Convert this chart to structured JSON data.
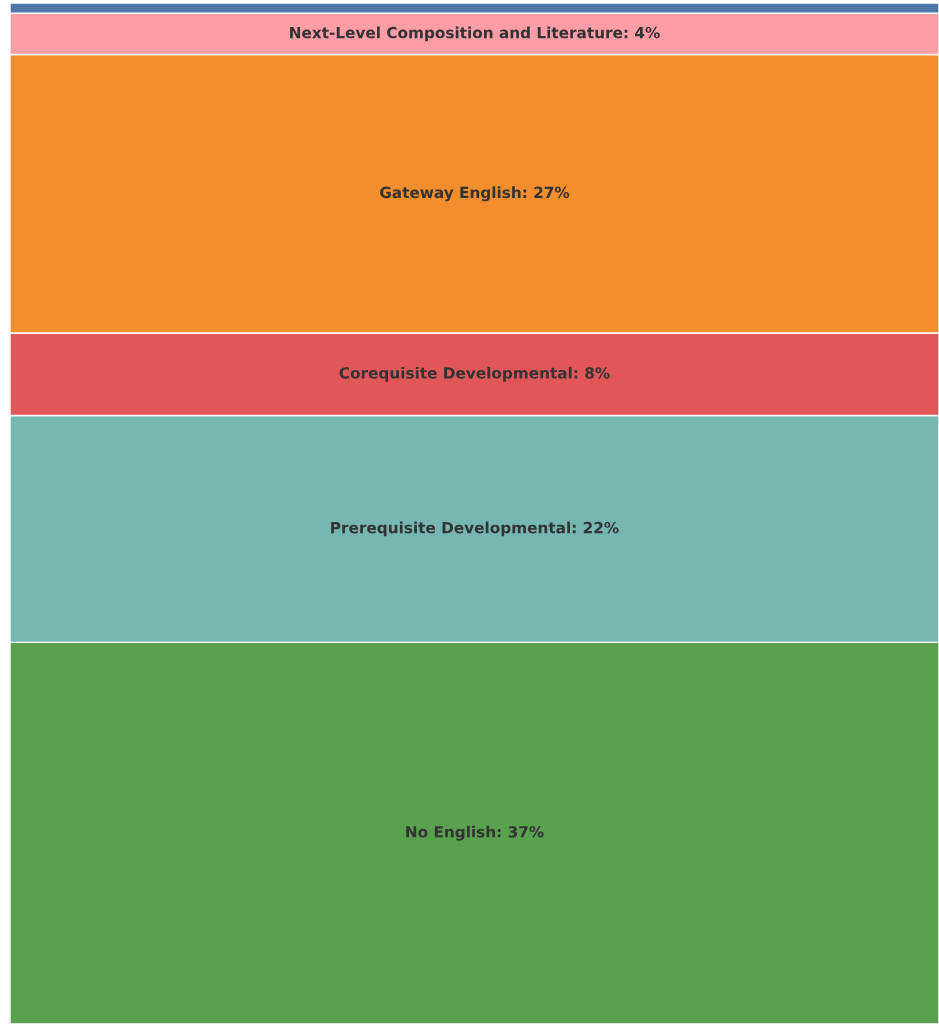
{
  "chart_data": {
    "type": "bar",
    "stacked": true,
    "categories": [
      null
    ],
    "legend": false,
    "grid": false,
    "tick_labels": false,
    "series": [
      {
        "color": "#59a14f",
        "values": [
          37
        ],
        "value_labels": [
          "No English: 37%"
        ]
      },
      {
        "color": "#76b7b2",
        "values": [
          22
        ],
        "value_labels": [
          "Prerequisite Developmental: 22%"
        ]
      },
      {
        "color": "#e15759",
        "values": [
          8
        ],
        "value_labels": [
          "Corequisite Developmental: 8%"
        ]
      },
      {
        "color": "#f28e2b",
        "values": [
          27
        ],
        "value_labels": [
          "Gateway English: 27%"
        ]
      },
      {
        "color": "#ff9da7",
        "values": [
          4
        ],
        "value_labels": [
          "Next-Level Composition and Literature: 4%"
        ]
      },
      {
        "color": "#4e79a7",
        "values": [
          1
        ],
        "value_labels": [
          null
        ]
      }
    ]
  }
}
